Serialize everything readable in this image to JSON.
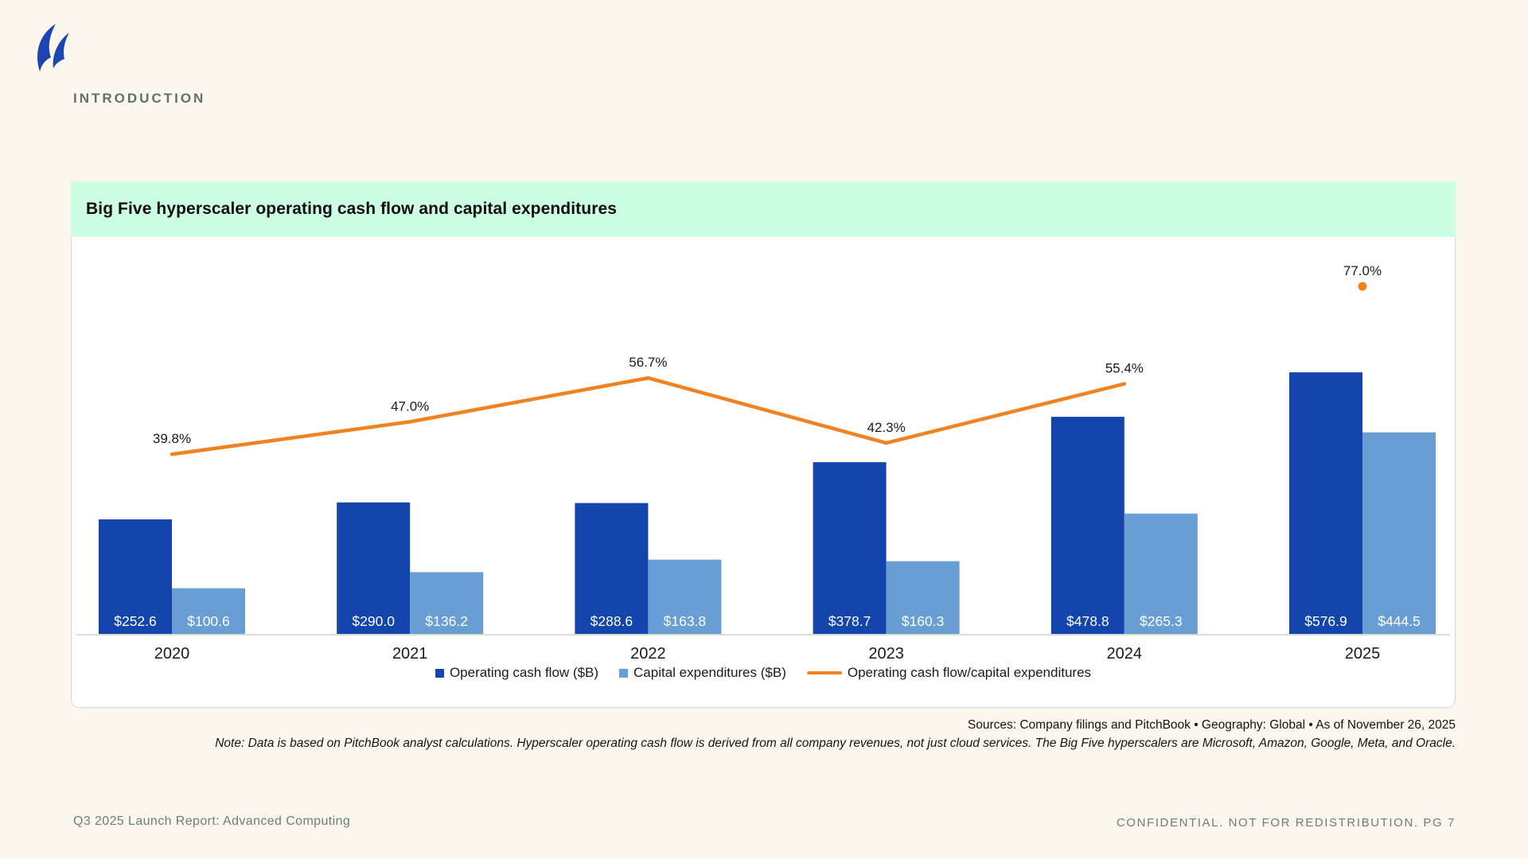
{
  "page": {
    "section_label": "INTRODUCTION",
    "footer_left": "Q3 2025 Launch Report: Advanced Computing",
    "footer_right": "CONFIDENTIAL. NOT FOR REDISTRIBUTION.  PG 7"
  },
  "card": {
    "title": "Big Five hyperscaler operating cash flow and capital expenditures",
    "sources": "Sources: Company filings and PitchBook  •  Geography: Global  •  As of November 26, 2025",
    "note": "Note: Data is based on PitchBook analyst calculations. Hyperscaler operating cash flow is derived from all company revenues, not just cloud services. The Big Five hyperscalers are Microsoft, Amazon, Google, Meta, and Oracle."
  },
  "colors": {
    "page_bg": "#fbf7ee",
    "mint_header": "#ccfde2",
    "bar_dark_blue": "#1445ac",
    "bar_light_blue": "#699ed4",
    "line_orange": "#f08222",
    "logo_blue": "#1c45b2",
    "muted_green": "#5d7265",
    "axis_gray": "#dcdcd7"
  },
  "chart_data": {
    "type": "bar",
    "title": "Big Five hyperscaler operating cash flow and capital expenditures",
    "categories": [
      "2020",
      "2021",
      "2022",
      "2023",
      "2024",
      "2025"
    ],
    "series": [
      {
        "name": "Operating cash flow ($B)",
        "color": "#1445ac",
        "values": [
          252.6,
          290.0,
          288.6,
          378.7,
          478.8,
          576.9
        ],
        "labels": [
          "$252.6",
          "$290.0",
          "$288.6",
          "$378.7",
          "$478.8",
          "$576.9"
        ]
      },
      {
        "name": "Capital expenditures ($B)",
        "color": "#699ed4",
        "values": [
          100.6,
          136.2,
          163.8,
          160.3,
          265.3,
          444.5
        ],
        "labels": [
          "$100.6",
          "$136.2",
          "$163.8",
          "$160.3",
          "$265.3",
          "$444.5"
        ]
      }
    ],
    "line_series": {
      "name": "Operating cash flow/capital expenditures",
      "color": "#f08222",
      "values": [
        39.8,
        47.0,
        56.7,
        42.3,
        55.4,
        77.0
      ],
      "labels": [
        "39.8%",
        "47.0%",
        "56.7%",
        "42.3%",
        "55.4%",
        "77.0%"
      ],
      "last_point_detached_dot": true
    },
    "ylabel": "",
    "xlabel": "",
    "grid": false,
    "legend_position": "bottom",
    "value_labels_inside_bars": true
  }
}
